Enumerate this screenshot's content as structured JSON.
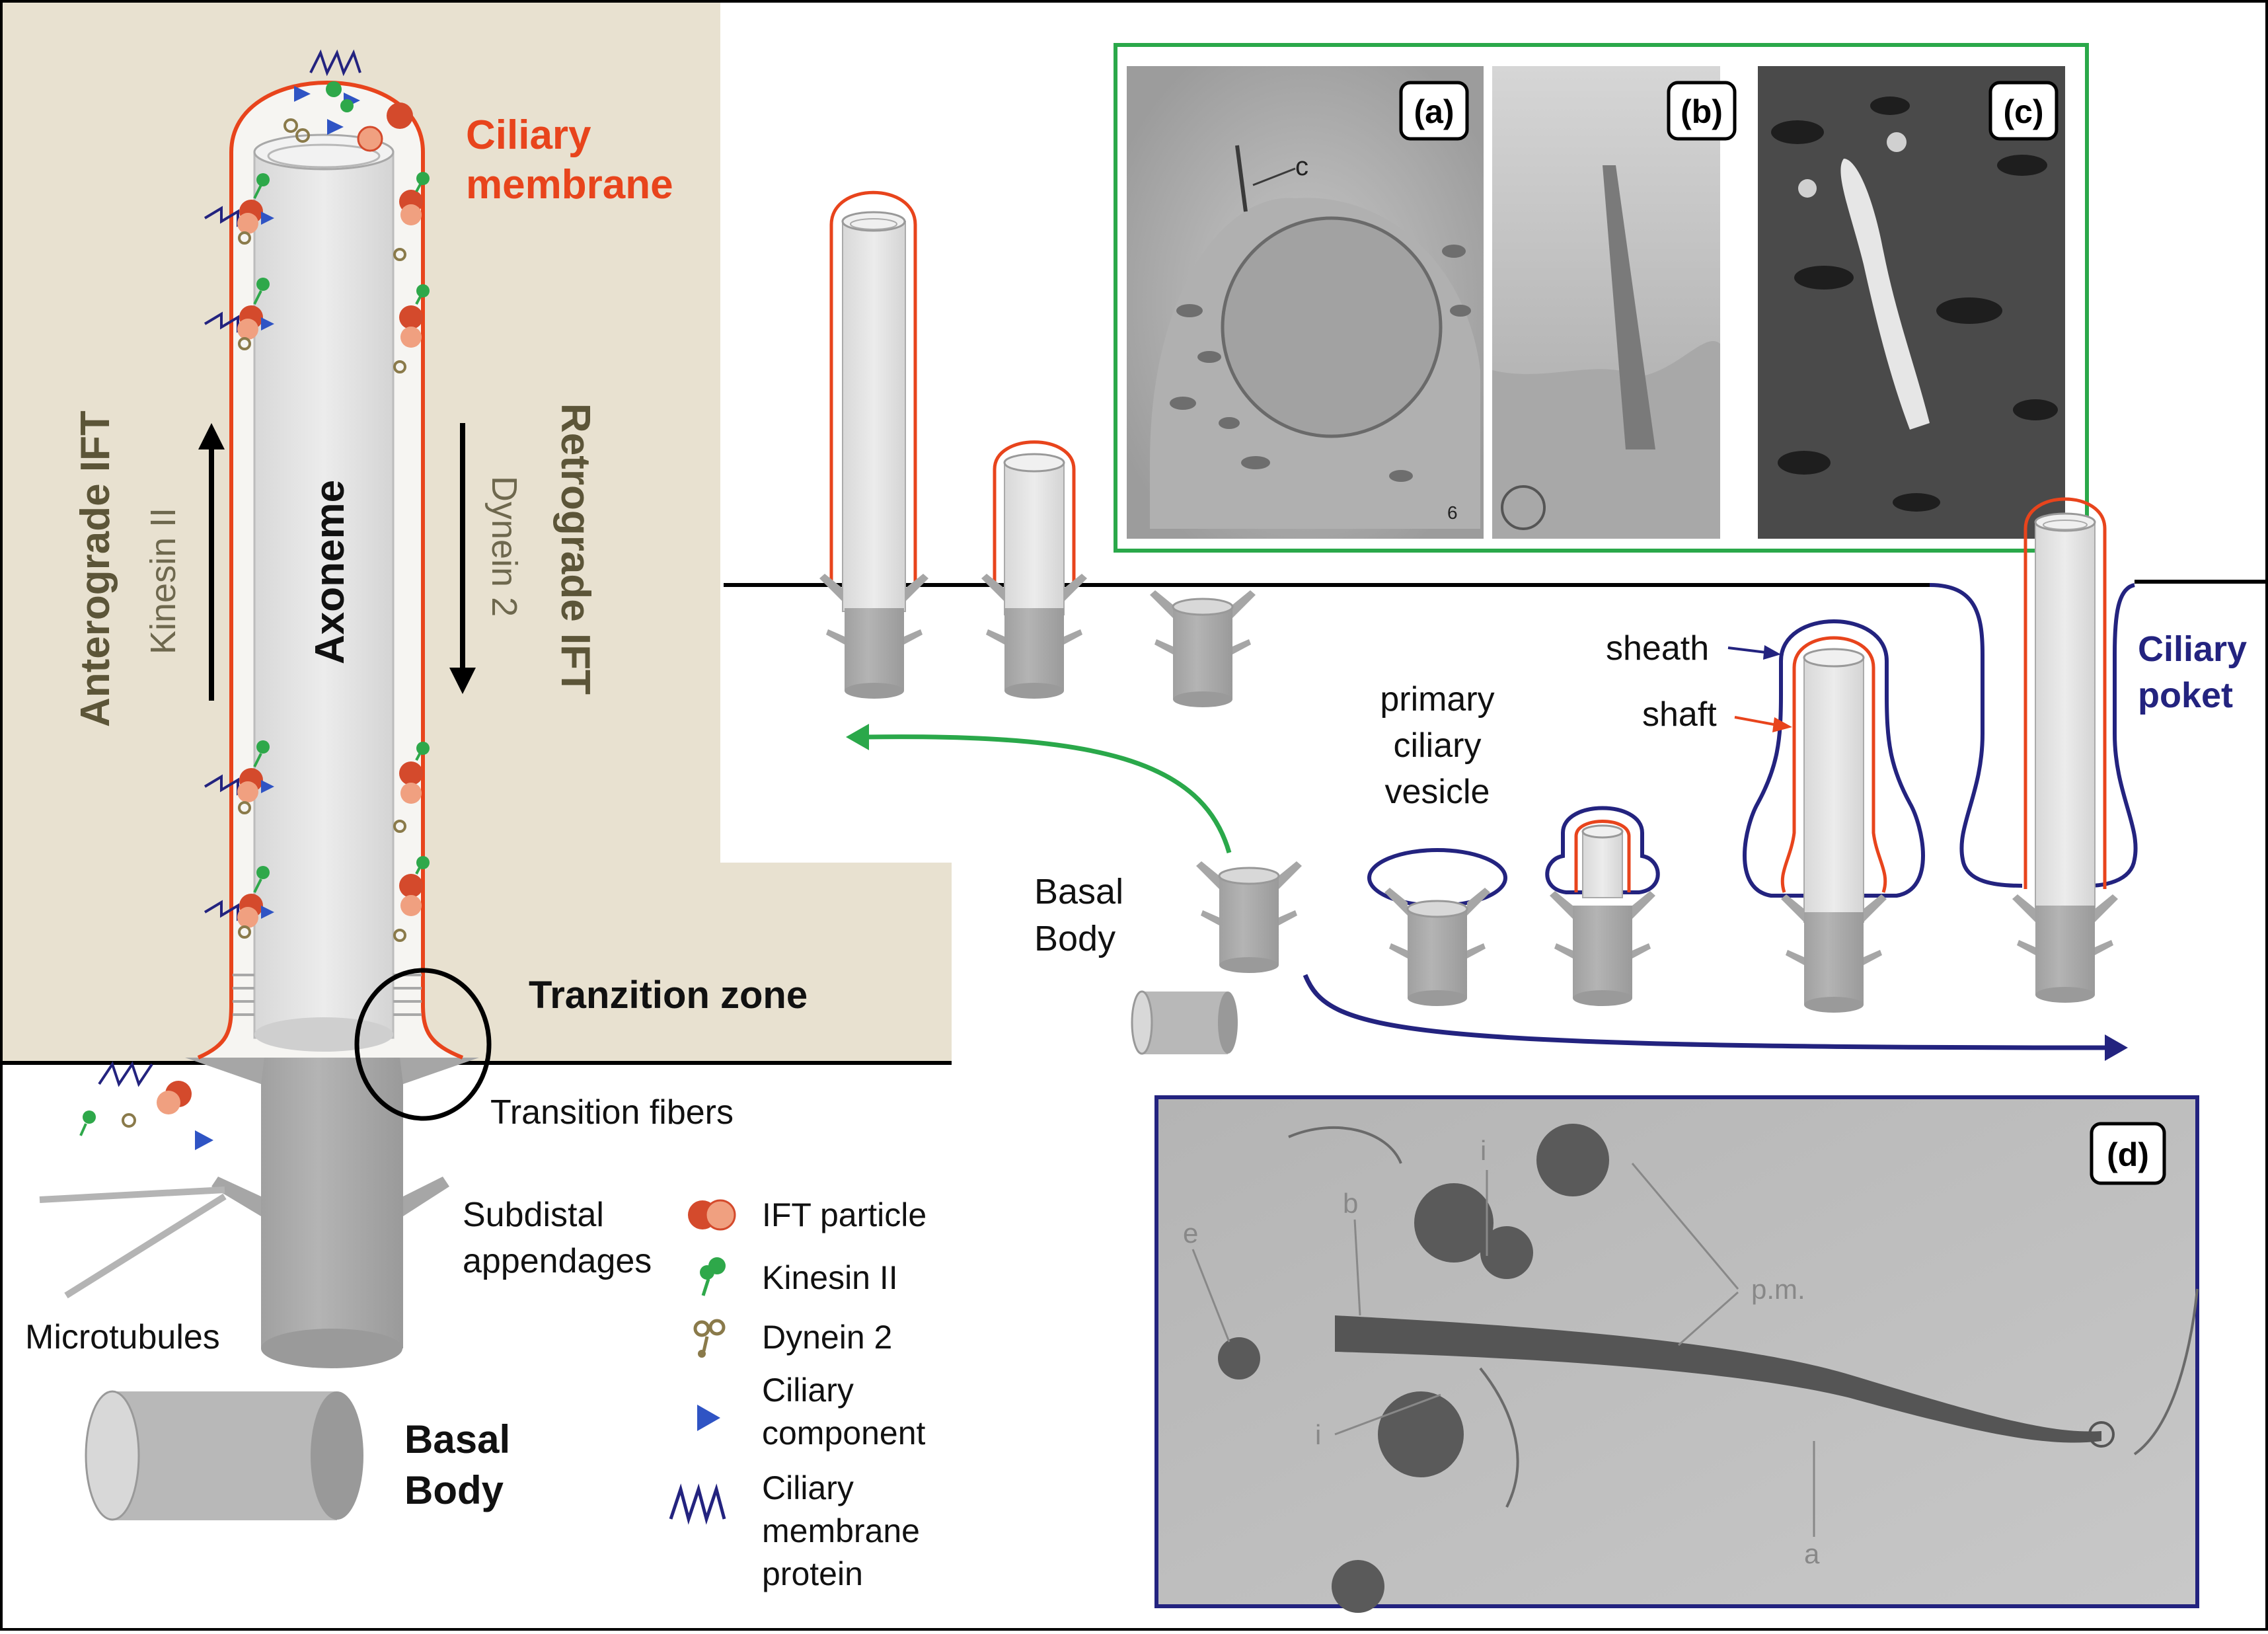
{
  "colors": {
    "beige": "#e8e1d0",
    "membrane_red": "#e8441c",
    "navy": "#23237f",
    "green": "#2aa84a",
    "olive": "#5c5538",
    "tube_light": "#e6e6e6",
    "tube_dark": "#a9a9a9",
    "ift_red": "#d44a2c",
    "kinesin_green": "#2ea84a",
    "dynein_brown": "#8a7a4a",
    "component_blue": "#2f54c4"
  },
  "left_panel": {
    "ciliary_membrane": [
      "Ciliary",
      "membrane"
    ],
    "anterograde": "Anterograde IFT",
    "kinesin": "Kinesin II",
    "axoneme": "Axoneme",
    "retrograde": "Retrograde IFT",
    "dynein": "Dynein 2",
    "transition_zone": "Tranzition zone",
    "transition_fibers": "Transition fibers",
    "subdistal": [
      "Subdistal",
      "appendages"
    ],
    "microtubules": "Microtubules",
    "basal_body": [
      "Basal",
      "Body"
    ]
  },
  "legend": {
    "ift_particle": "IFT particle",
    "kinesin": "Kinesin II",
    "dynein": "Dynein 2",
    "ciliary_component": [
      "Ciliary",
      "component"
    ],
    "ciliary_membrane_protein": [
      "Ciliary",
      "membrane",
      "protein"
    ]
  },
  "right_panel": {
    "basal_body": [
      "Basal",
      "Body"
    ],
    "primary_ciliary_vesicle": [
      "primary",
      "ciliary",
      "vesicle"
    ],
    "sheath": "sheath",
    "shaft": "shaft",
    "ciliary_pocket": [
      "Ciliary",
      "poket"
    ]
  },
  "micrographs": {
    "a_label": "(a)",
    "b_label": "(b)",
    "c_label": "(c)",
    "d_label": "(d)",
    "a_letter": "c",
    "a_corner": "6",
    "d_letters": {
      "e": "e",
      "b": "b",
      "i_top": "i",
      "i_bottom": "i",
      "pm": "p.m.",
      "a": "a"
    }
  }
}
